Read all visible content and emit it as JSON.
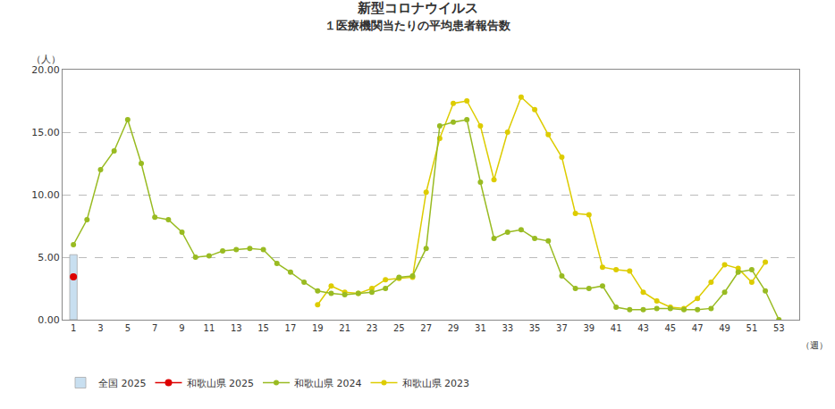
{
  "chart_data": {
    "type": "line",
    "title": "新型コロナウイルス",
    "subtitle": "１医療機関当たりの平均患者報告数",
    "xlabel": "（週）",
    "ylabel": "（人）",
    "xlim": [
      0.2,
      54.5
    ],
    "xticks": [
      1,
      3,
      5,
      7,
      9,
      11,
      13,
      15,
      17,
      19,
      21,
      23,
      25,
      27,
      29,
      31,
      33,
      35,
      37,
      39,
      41,
      43,
      45,
      47,
      49,
      51,
      53
    ],
    "ylim": [
      0,
      20.0
    ],
    "yticks": [
      {
        "value": 0.0,
        "label": "0.00"
      },
      {
        "value": 5.0,
        "label": "5.00"
      },
      {
        "value": 10.0,
        "label": "10.00"
      },
      {
        "value": 15.0,
        "label": "15.00"
      },
      {
        "value": 20.0,
        "label": "20.00"
      }
    ],
    "grid": true,
    "legend": "bottom",
    "series": [
      {
        "name": "全国 2025",
        "type": "bar",
        "color": "#c8dff0",
        "x": [
          1
        ],
        "values": [
          5.2
        ]
      },
      {
        "name": "和歌山県 2025",
        "type": "line",
        "color": "#dd0000",
        "marker": "circle",
        "line_style": "solid",
        "x": [
          1
        ],
        "values": [
          3.42
        ]
      },
      {
        "name": "和歌山県 2024",
        "type": "line",
        "color": "#99bb22",
        "marker": "circle",
        "line_style": "solid",
        "x": [
          1,
          2,
          3,
          4,
          5,
          6,
          7,
          8,
          9,
          10,
          11,
          12,
          13,
          14,
          15,
          16,
          17,
          18,
          19,
          20,
          21,
          22,
          23,
          24,
          25,
          26,
          27,
          28,
          29,
          30,
          31,
          32,
          33,
          34,
          35,
          36,
          37,
          38,
          39,
          40,
          41,
          42,
          43,
          44,
          45,
          46,
          47,
          48,
          49,
          50,
          51,
          52,
          53
        ],
        "values": [
          6.0,
          8.0,
          12.0,
          13.5,
          16.0,
          12.5,
          8.2,
          8.0,
          7.0,
          5.0,
          5.1,
          5.5,
          5.6,
          5.7,
          5.6,
          4.5,
          3.8,
          3.0,
          2.3,
          2.1,
          2.0,
          2.1,
          2.2,
          2.5,
          3.4,
          3.5,
          5.7,
          15.5,
          15.8,
          16.0,
          11.0,
          6.5,
          7.0,
          7.2,
          6.5,
          6.3,
          3.5,
          2.5,
          2.5,
          2.7,
          1.0,
          0.8,
          0.8,
          0.9,
          0.9,
          0.8,
          0.8,
          0.9,
          2.2,
          3.8,
          4.0,
          2.3,
          0.0
        ]
      },
      {
        "name": "和歌山県 2023",
        "type": "line",
        "color": "#ddcc00",
        "marker": "circle",
        "line_style": "solid",
        "x": [
          19,
          20,
          21,
          22,
          23,
          24,
          25,
          26,
          27,
          28,
          29,
          30,
          31,
          32,
          33,
          34,
          35,
          36,
          37,
          38,
          39,
          40,
          41,
          42,
          43,
          44,
          45,
          46,
          47,
          48,
          49,
          50,
          51,
          52
        ],
        "values": [
          1.2,
          2.7,
          2.2,
          2.1,
          2.5,
          3.2,
          3.3,
          3.4,
          10.2,
          14.5,
          17.3,
          17.5,
          15.5,
          11.2,
          15.0,
          17.8,
          16.8,
          14.8,
          13.0,
          8.5,
          8.4,
          4.2,
          4.0,
          3.9,
          2.2,
          1.5,
          1.0,
          0.9,
          1.7,
          3.0,
          4.4,
          4.1,
          3.0,
          4.6
        ]
      }
    ]
  }
}
